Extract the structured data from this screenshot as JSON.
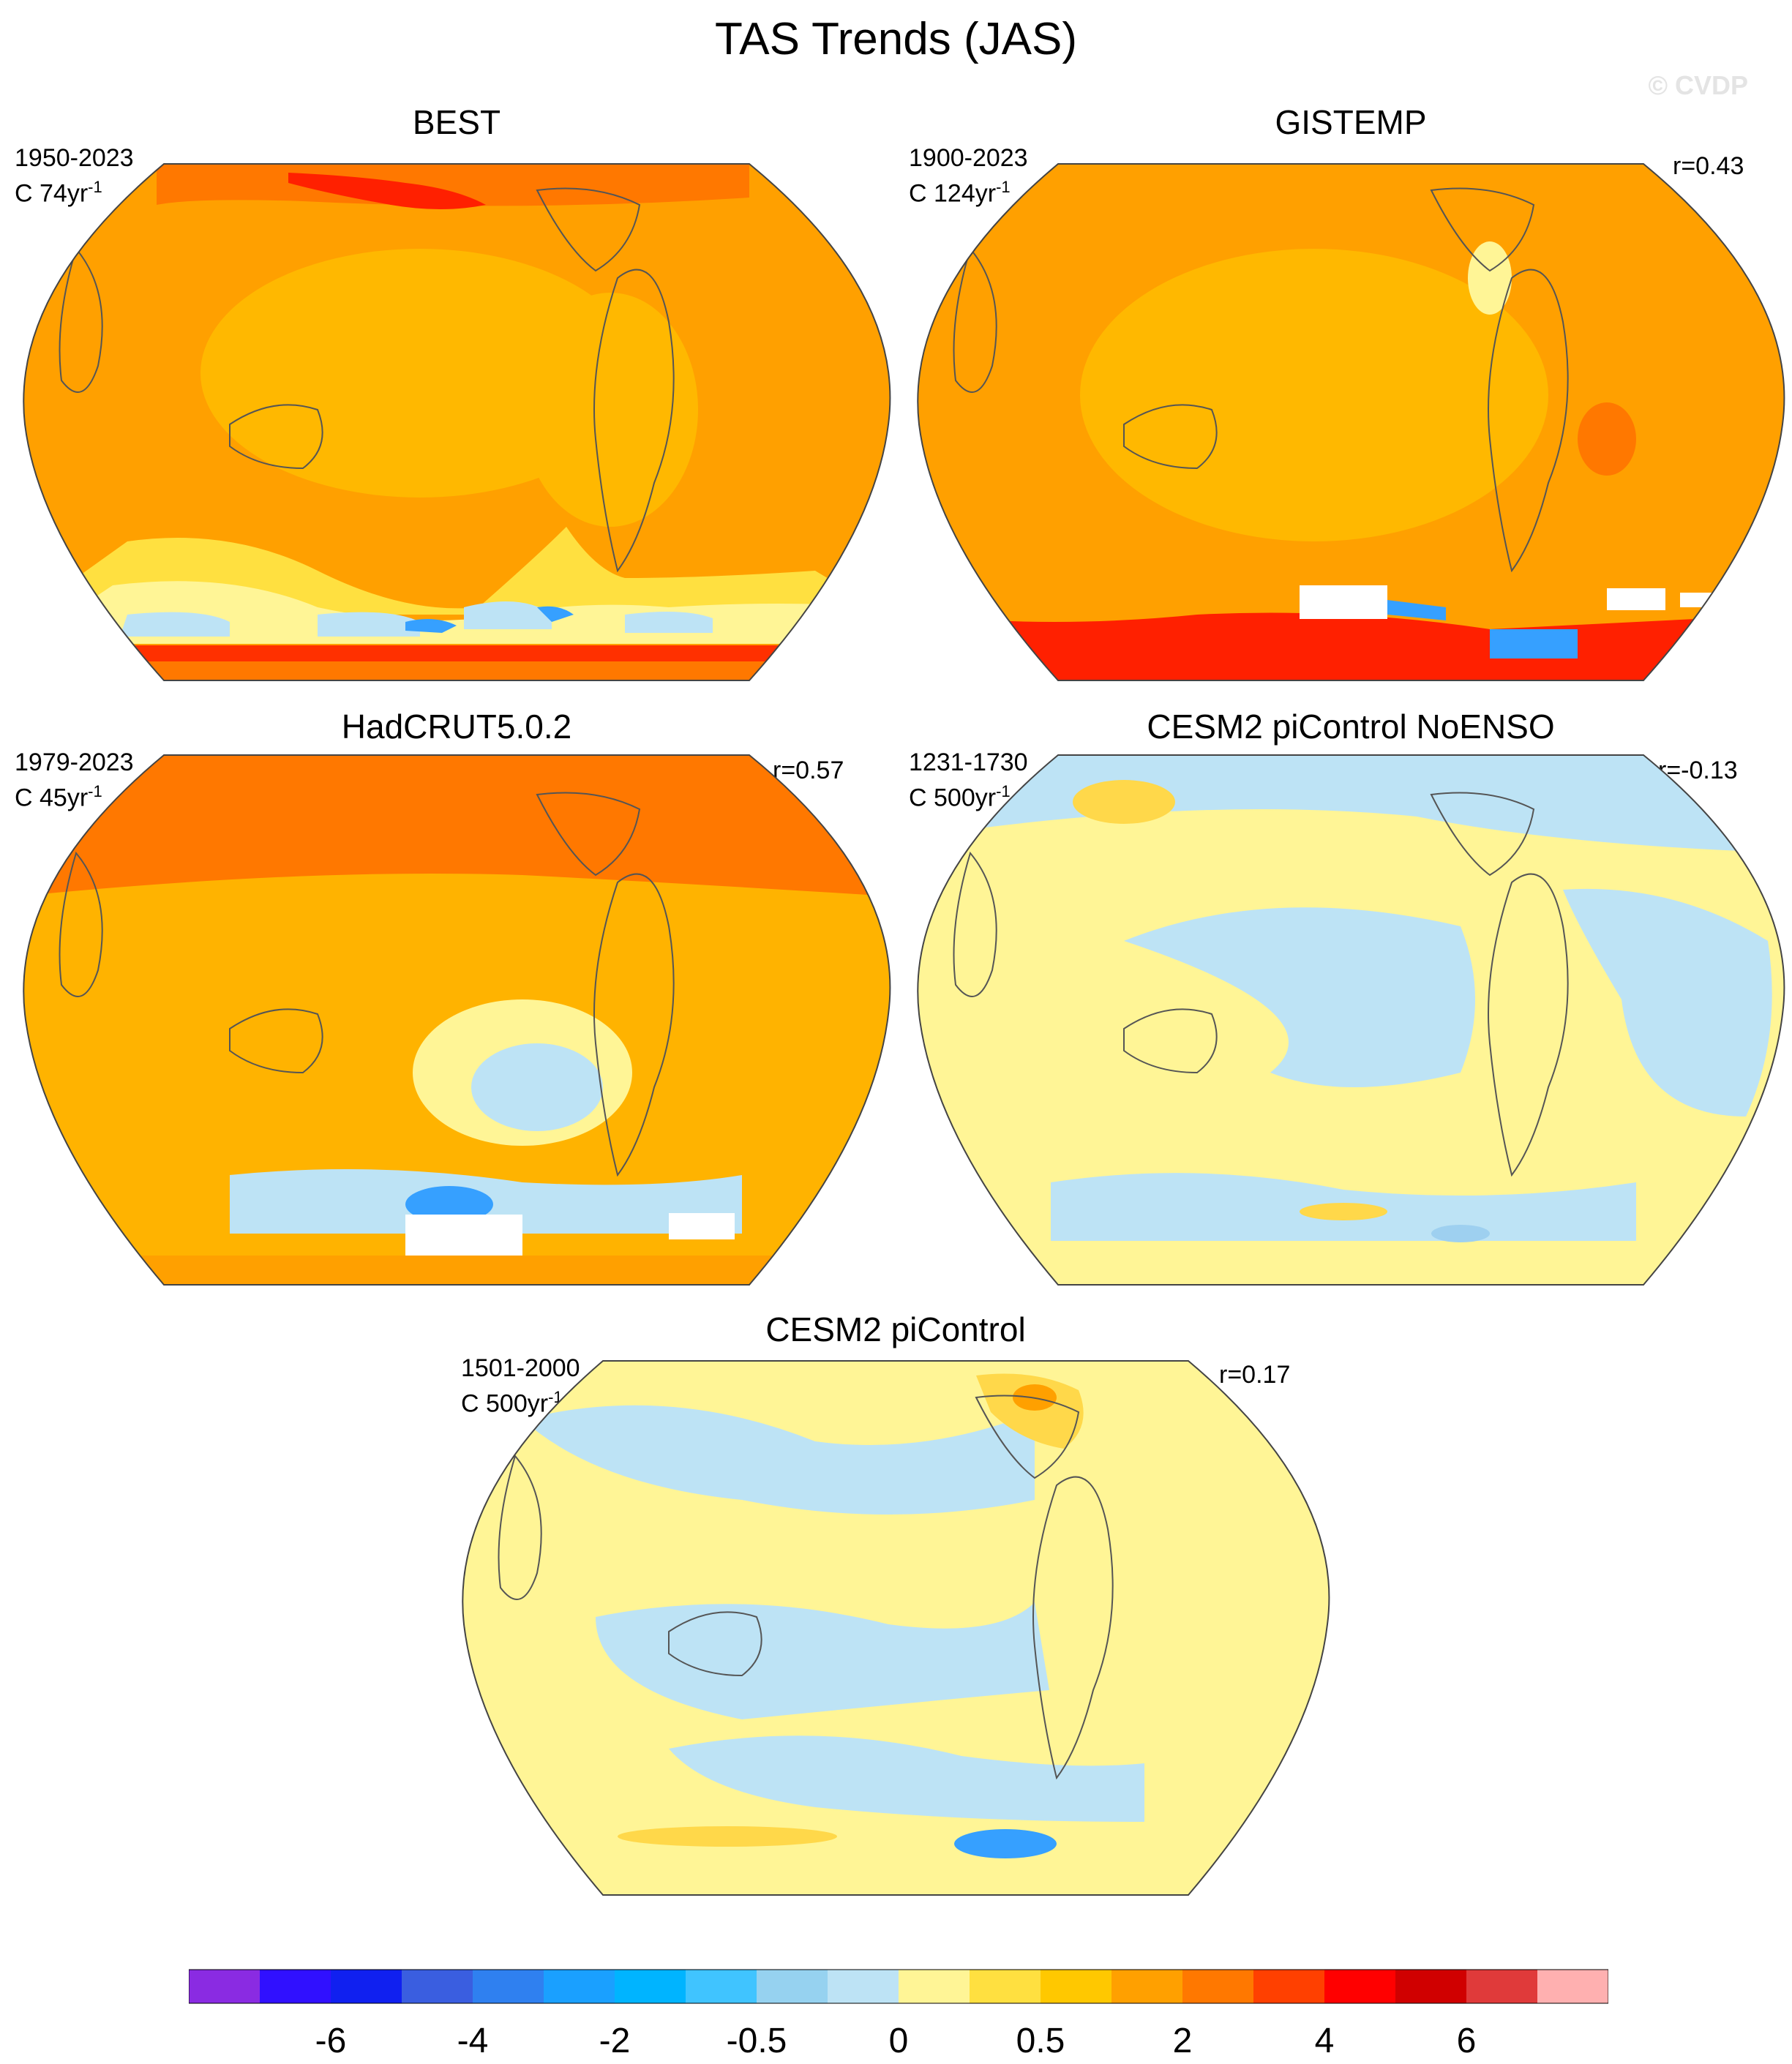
{
  "title": "TAS Trends (JAS)",
  "watermark": "© CVDP",
  "panels": [
    {
      "id": "best",
      "title": "BEST",
      "period": "1950-2023",
      "trend_prefix": "C 74yr",
      "trend_exp": "-1",
      "r": "",
      "base_color": "#ffa000",
      "patches": [
        "#ff7800",
        "#ffcf00",
        "#fff596",
        "#ffe040",
        "#ff2000",
        "#bde3f5",
        "#36a0ff"
      ]
    },
    {
      "id": "gistemp",
      "title": "GISTEMP",
      "period": "1900-2023",
      "trend_prefix": "C 124yr",
      "trend_exp": "-1",
      "r": "r=0.43",
      "base_color": "#ffa000",
      "patches": [
        "#ff7800",
        "#ffcf00",
        "#fff596",
        "#ff2000",
        "#36a0ff",
        "#ffffff"
      ]
    },
    {
      "id": "hadcrut",
      "title": "HadCRUT5.0.2",
      "period": "1979-2023",
      "trend_prefix": "C 45yr",
      "trend_exp": "-1",
      "r": "r=0.57",
      "base_color": "#ffb300",
      "patches": [
        "#ff7800",
        "#ffa000",
        "#fff596",
        "#bde3f5",
        "#36a0ff",
        "#ffffff"
      ]
    },
    {
      "id": "cesm2-noenso",
      "title": "CESM2 piControl NoENSO",
      "period": "1231-1730",
      "trend_prefix": "C 500yr",
      "trend_exp": "-1",
      "r": "r=-0.13",
      "base_color": "#fff596",
      "patches": [
        "#bde3f5",
        "#ffd84a",
        "#9ed0f0"
      ]
    },
    {
      "id": "cesm2",
      "title": "CESM2 piControl",
      "period": "1501-2000",
      "trend_prefix": "C 500yr",
      "trend_exp": "-1",
      "r": "r=0.17",
      "base_color": "#fff596",
      "patches": [
        "#bde3f5",
        "#ffd84a",
        "#ffa000",
        "#36a0ff"
      ]
    }
  ],
  "colorbar": {
    "colors": [
      "#8a2be2",
      "#3010ff",
      "#1020f0",
      "#3a5ee0",
      "#2f80f0",
      "#1aa0ff",
      "#00b4ff",
      "#40c4ff",
      "#96d2f0",
      "#bde3f5",
      "#fff596",
      "#ffe040",
      "#ffc800",
      "#ffa000",
      "#ff7800",
      "#ff4000",
      "#ff0000",
      "#d00000",
      "#e03a3a",
      "#ffb0b0"
    ],
    "labels": [
      "-6",
      "-4",
      "-2",
      "-0.5",
      "0",
      "0.5",
      "2",
      "4",
      "6"
    ],
    "label_boundaries": [
      2,
      4,
      6,
      8,
      10,
      12,
      14,
      16,
      18
    ]
  }
}
